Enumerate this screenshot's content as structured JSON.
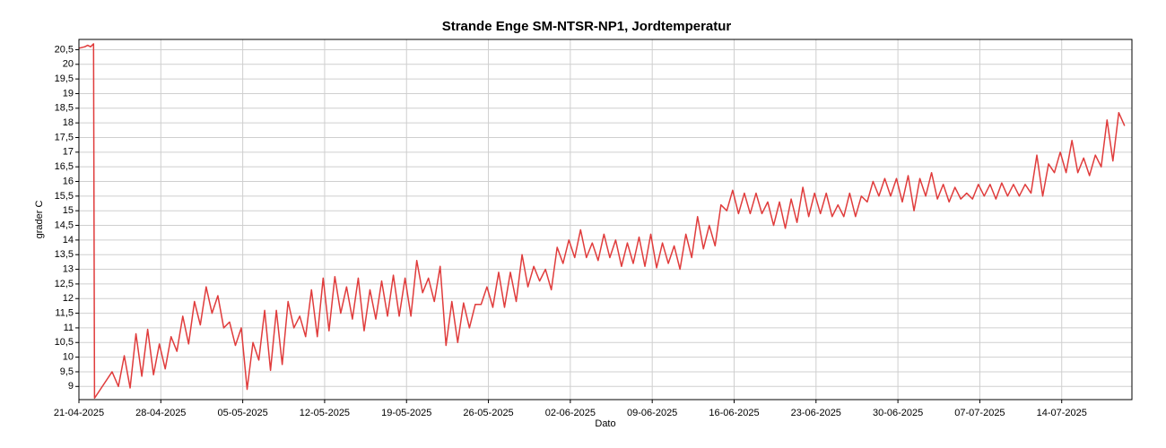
{
  "chart_data": {
    "type": "line",
    "title": "Strande Enge SM-NTSR-NP1, Jordtemperatur",
    "xlabel": "Dato",
    "ylabel": "grader C",
    "color": "#e03c3c",
    "grid": true,
    "xlim": [
      "2025-04-21",
      "2025-07-20"
    ],
    "ylim": [
      8.55,
      20.85
    ],
    "xticks": [
      {
        "value": "2025-04-21",
        "label": "21-04-2025"
      },
      {
        "value": "2025-04-28",
        "label": "28-04-2025"
      },
      {
        "value": "2025-05-05",
        "label": "05-05-2025"
      },
      {
        "value": "2025-05-12",
        "label": "12-05-2025"
      },
      {
        "value": "2025-05-19",
        "label": "19-05-2025"
      },
      {
        "value": "2025-05-26",
        "label": "26-05-2025"
      },
      {
        "value": "2025-06-02",
        "label": "02-06-2025"
      },
      {
        "value": "2025-06-09",
        "label": "09-06-2025"
      },
      {
        "value": "2025-06-16",
        "label": "16-06-2025"
      },
      {
        "value": "2025-06-23",
        "label": "23-06-2025"
      },
      {
        "value": "2025-06-30",
        "label": "30-06-2025"
      },
      {
        "value": "2025-07-07",
        "label": "07-07-2025"
      },
      {
        "value": "2025-07-14",
        "label": "14-07-2025"
      }
    ],
    "yticks": [
      9,
      {
        "value": 9.5,
        "label": "9,5"
      },
      10,
      {
        "value": 10.5,
        "label": "10,5"
      },
      11,
      {
        "value": 11.5,
        "label": "11,5"
      },
      12,
      {
        "value": 12.5,
        "label": "12,5"
      },
      13,
      {
        "value": 13.5,
        "label": "13,5"
      },
      14,
      {
        "value": 14.5,
        "label": "14,5"
      },
      15,
      {
        "value": 15.5,
        "label": "15,5"
      },
      16,
      {
        "value": 16.5,
        "label": "16,5"
      },
      17,
      {
        "value": 17.5,
        "label": "17,5"
      },
      18,
      {
        "value": 18.5,
        "label": "18,5"
      },
      19,
      {
        "value": 19.5,
        "label": "19,5"
      },
      20,
      {
        "value": 20.5,
        "label": "20,5"
      }
    ],
    "x": [
      "2025-04-21T00:00",
      "2025-04-21T12:00",
      "2025-04-21T18:00",
      "2025-04-22T00:00",
      "2025-04-22T06:00",
      "2025-04-22T08:00",
      "2025-04-23T20:00",
      "2025-04-24T09:00",
      "2025-04-24T21:00",
      "2025-04-25T09:00",
      "2025-04-25T21:00",
      "2025-04-26T09:00",
      "2025-04-26T21:00",
      "2025-04-27T09:00",
      "2025-04-27T21:00",
      "2025-04-28T09:00",
      "2025-04-28T21:00",
      "2025-04-29T09:00",
      "2025-04-29T21:00",
      "2025-04-30T09:00",
      "2025-04-30T21:00",
      "2025-05-01T09:00",
      "2025-05-01T21:00",
      "2025-05-02T09:00",
      "2025-05-02T21:00",
      "2025-05-03T09:00",
      "2025-05-03T21:00",
      "2025-05-04T09:00",
      "2025-05-04T21:00",
      "2025-05-05T09:00",
      "2025-05-05T21:00",
      "2025-05-06T09:00",
      "2025-05-06T21:00",
      "2025-05-07T09:00",
      "2025-05-07T21:00",
      "2025-05-08T09:00",
      "2025-05-08T21:00",
      "2025-05-09T09:00",
      "2025-05-09T21:00",
      "2025-05-10T09:00",
      "2025-05-10T21:00",
      "2025-05-11T09:00",
      "2025-05-11T21:00",
      "2025-05-12T09:00",
      "2025-05-12T21:00",
      "2025-05-13T09:00",
      "2025-05-13T21:00",
      "2025-05-14T09:00",
      "2025-05-14T21:00",
      "2025-05-15T09:00",
      "2025-05-15T21:00",
      "2025-05-16T09:00",
      "2025-05-16T21:00",
      "2025-05-17T09:00",
      "2025-05-17T21:00",
      "2025-05-18T09:00",
      "2025-05-18T21:00",
      "2025-05-19T09:00",
      "2025-05-19T21:00",
      "2025-05-20T09:00",
      "2025-05-20T21:00",
      "2025-05-21T09:00",
      "2025-05-21T21:00",
      "2025-05-22T09:00",
      "2025-05-22T21:00",
      "2025-05-23T09:00",
      "2025-05-23T21:00",
      "2025-05-24T09:00",
      "2025-05-24T21:00",
      "2025-05-25T09:00",
      "2025-05-25T21:00",
      "2025-05-26T09:00",
      "2025-05-26T21:00",
      "2025-05-27T09:00",
      "2025-05-27T21:00",
      "2025-05-28T09:00",
      "2025-05-28T21:00",
      "2025-05-29T09:00",
      "2025-05-29T21:00",
      "2025-05-30T09:00",
      "2025-05-30T21:00",
      "2025-05-31T09:00",
      "2025-05-31T21:00",
      "2025-06-01T09:00",
      "2025-06-01T21:00",
      "2025-06-02T09:00",
      "2025-06-02T21:00",
      "2025-06-03T09:00",
      "2025-06-03T21:00",
      "2025-06-04T09:00",
      "2025-06-04T21:00",
      "2025-06-05T09:00",
      "2025-06-05T21:00",
      "2025-06-06T09:00",
      "2025-06-06T21:00",
      "2025-06-07T09:00",
      "2025-06-07T21:00",
      "2025-06-08T09:00",
      "2025-06-08T21:00",
      "2025-06-09T09:00",
      "2025-06-09T21:00",
      "2025-06-10T09:00",
      "2025-06-10T21:00",
      "2025-06-11T09:00",
      "2025-06-11T21:00",
      "2025-06-12T09:00",
      "2025-06-12T21:00",
      "2025-06-13T09:00",
      "2025-06-13T21:00",
      "2025-06-14T09:00",
      "2025-06-14T21:00",
      "2025-06-15T09:00",
      "2025-06-15T21:00",
      "2025-06-16T09:00",
      "2025-06-16T21:00",
      "2025-06-17T09:00",
      "2025-06-17T21:00",
      "2025-06-18T09:00",
      "2025-06-18T21:00",
      "2025-06-19T09:00",
      "2025-06-19T21:00",
      "2025-06-20T09:00",
      "2025-06-20T21:00",
      "2025-06-21T09:00",
      "2025-06-21T21:00",
      "2025-06-22T09:00",
      "2025-06-22T21:00",
      "2025-06-23T09:00",
      "2025-06-23T21:00",
      "2025-06-24T09:00",
      "2025-06-24T21:00",
      "2025-06-25T09:00",
      "2025-06-25T21:00",
      "2025-06-26T09:00",
      "2025-06-26T21:00",
      "2025-06-27T09:00",
      "2025-06-27T21:00",
      "2025-06-28T09:00",
      "2025-06-28T21:00",
      "2025-06-29T09:00",
      "2025-06-29T21:00",
      "2025-06-30T09:00",
      "2025-06-30T21:00",
      "2025-07-01T09:00",
      "2025-07-01T21:00",
      "2025-07-02T09:00",
      "2025-07-02T21:00",
      "2025-07-03T09:00",
      "2025-07-03T21:00",
      "2025-07-04T09:00",
      "2025-07-04T21:00",
      "2025-07-05T09:00",
      "2025-07-05T21:00",
      "2025-07-06T09:00",
      "2025-07-06T21:00",
      "2025-07-07T09:00",
      "2025-07-07T21:00",
      "2025-07-08T09:00",
      "2025-07-08T21:00",
      "2025-07-09T09:00",
      "2025-07-09T21:00",
      "2025-07-10T09:00",
      "2025-07-10T21:00",
      "2025-07-11T09:00",
      "2025-07-11T21:00",
      "2025-07-12T09:00",
      "2025-07-12T21:00",
      "2025-07-13T09:00",
      "2025-07-13T21:00",
      "2025-07-14T09:00",
      "2025-07-14T21:00",
      "2025-07-15T09:00",
      "2025-07-15T21:00",
      "2025-07-16T09:00",
      "2025-07-16T21:00",
      "2025-07-17T09:00",
      "2025-07-17T21:00",
      "2025-07-18T09:00",
      "2025-07-18T21:00",
      "2025-07-19T09:00"
    ],
    "values": [
      20.55,
      20.6,
      20.65,
      20.6,
      20.7,
      8.6,
      9.5,
      9.0,
      10.05,
      8.95,
      10.8,
      9.35,
      10.95,
      9.4,
      10.45,
      9.6,
      10.7,
      10.2,
      11.4,
      10.45,
      11.9,
      11.1,
      12.4,
      11.5,
      12.1,
      11.0,
      11.2,
      10.4,
      11.0,
      8.9,
      10.5,
      9.9,
      11.6,
      9.55,
      11.6,
      9.75,
      11.9,
      11.0,
      11.4,
      10.7,
      12.3,
      10.7,
      12.7,
      10.9,
      12.75,
      11.5,
      12.4,
      11.3,
      12.7,
      10.9,
      12.3,
      11.3,
      12.6,
      11.4,
      12.8,
      11.4,
      12.7,
      11.4,
      13.3,
      12.2,
      12.7,
      11.9,
      13.1,
      10.4,
      11.9,
      10.5,
      11.85,
      11.0,
      11.8,
      11.8,
      12.4,
      11.7,
      12.9,
      11.7,
      12.9,
      11.9,
      13.5,
      12.4,
      13.1,
      12.6,
      13.0,
      12.3,
      13.75,
      13.2,
      14.0,
      13.4,
      14.35,
      13.4,
      13.9,
      13.3,
      14.2,
      13.4,
      14.0,
      13.1,
      13.9,
      13.2,
      14.1,
      13.1,
      14.2,
      13.05,
      13.9,
      13.2,
      13.8,
      13.0,
      14.2,
      13.4,
      14.8,
      13.7,
      14.5,
      13.8,
      15.2,
      15.0,
      15.7,
      14.9,
      15.6,
      14.9,
      15.6,
      14.9,
      15.3,
      14.5,
      15.3,
      14.4,
      15.4,
      14.6,
      15.8,
      14.8,
      15.6,
      14.9,
      15.6,
      14.8,
      15.2,
      14.8,
      15.6,
      14.8,
      15.5,
      15.3,
      16.0,
      15.5,
      16.1,
      15.5,
      16.1,
      15.3,
      16.2,
      15.0,
      16.1,
      15.5,
      16.3,
      15.4,
      15.9,
      15.3,
      15.8,
      15.4,
      15.6,
      15.4,
      15.9,
      15.5,
      15.9,
      15.4,
      15.95,
      15.5,
      15.9,
      15.5,
      15.9,
      15.6,
      16.9,
      15.5,
      16.6,
      16.3,
      17.0,
      16.3,
      17.4,
      16.3,
      16.8,
      16.2,
      16.9,
      16.5,
      18.1,
      16.7,
      18.35,
      17.9
    ]
  }
}
